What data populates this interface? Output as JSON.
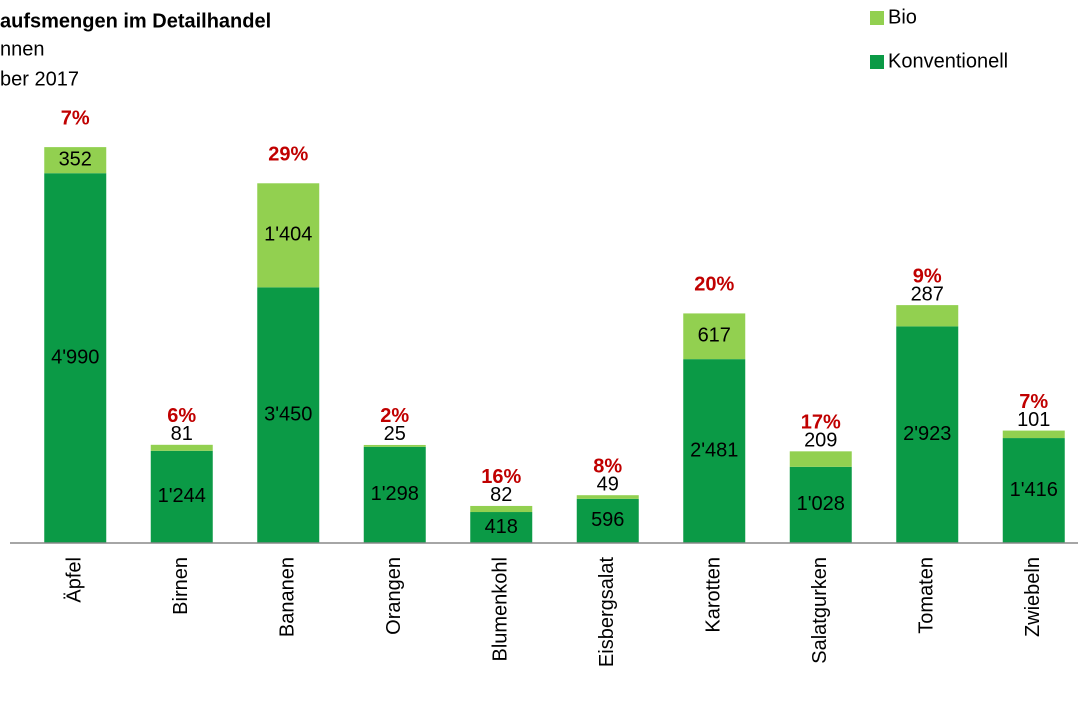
{
  "chart_data": {
    "type": "stacked_bar",
    "title": "aufsmengen im Detailhandel",
    "subtitle_lines": [
      "nnen",
      "ber 2017"
    ],
    "categories": [
      "Äpfel",
      "Birnen",
      "Bananen",
      "Orangen",
      "Blumenkohl",
      "Eisbergsalat",
      "Karotten",
      "Salatgurken",
      "Tomaten",
      "Zwiebeln"
    ],
    "series": [
      {
        "name": "Konventionell",
        "color": "#0b9a46",
        "values": [
          4990,
          1244,
          3450,
          1298,
          418,
          596,
          2481,
          1028,
          2923,
          1416
        ],
        "value_labels": [
          "4'990",
          "1'244",
          "3'450",
          "1'298",
          "418",
          "596",
          "2'481",
          "1'028",
          "2'923",
          "1'416"
        ]
      },
      {
        "name": "Bio",
        "color": "#92d050",
        "values": [
          352,
          81,
          1404,
          25,
          82,
          49,
          617,
          209,
          287,
          101
        ],
        "value_labels": [
          "352",
          "81",
          "1'404",
          "25",
          "82",
          "49",
          "617",
          "209",
          "287",
          "101"
        ]
      }
    ],
    "bio_share_labels": [
      "7%",
      "6%",
      "29%",
      "2%",
      "16%",
      "8%",
      "20%",
      "17%",
      "9%",
      "7%"
    ],
    "ylim": [
      0,
      5600
    ],
    "legend": "top-right"
  }
}
